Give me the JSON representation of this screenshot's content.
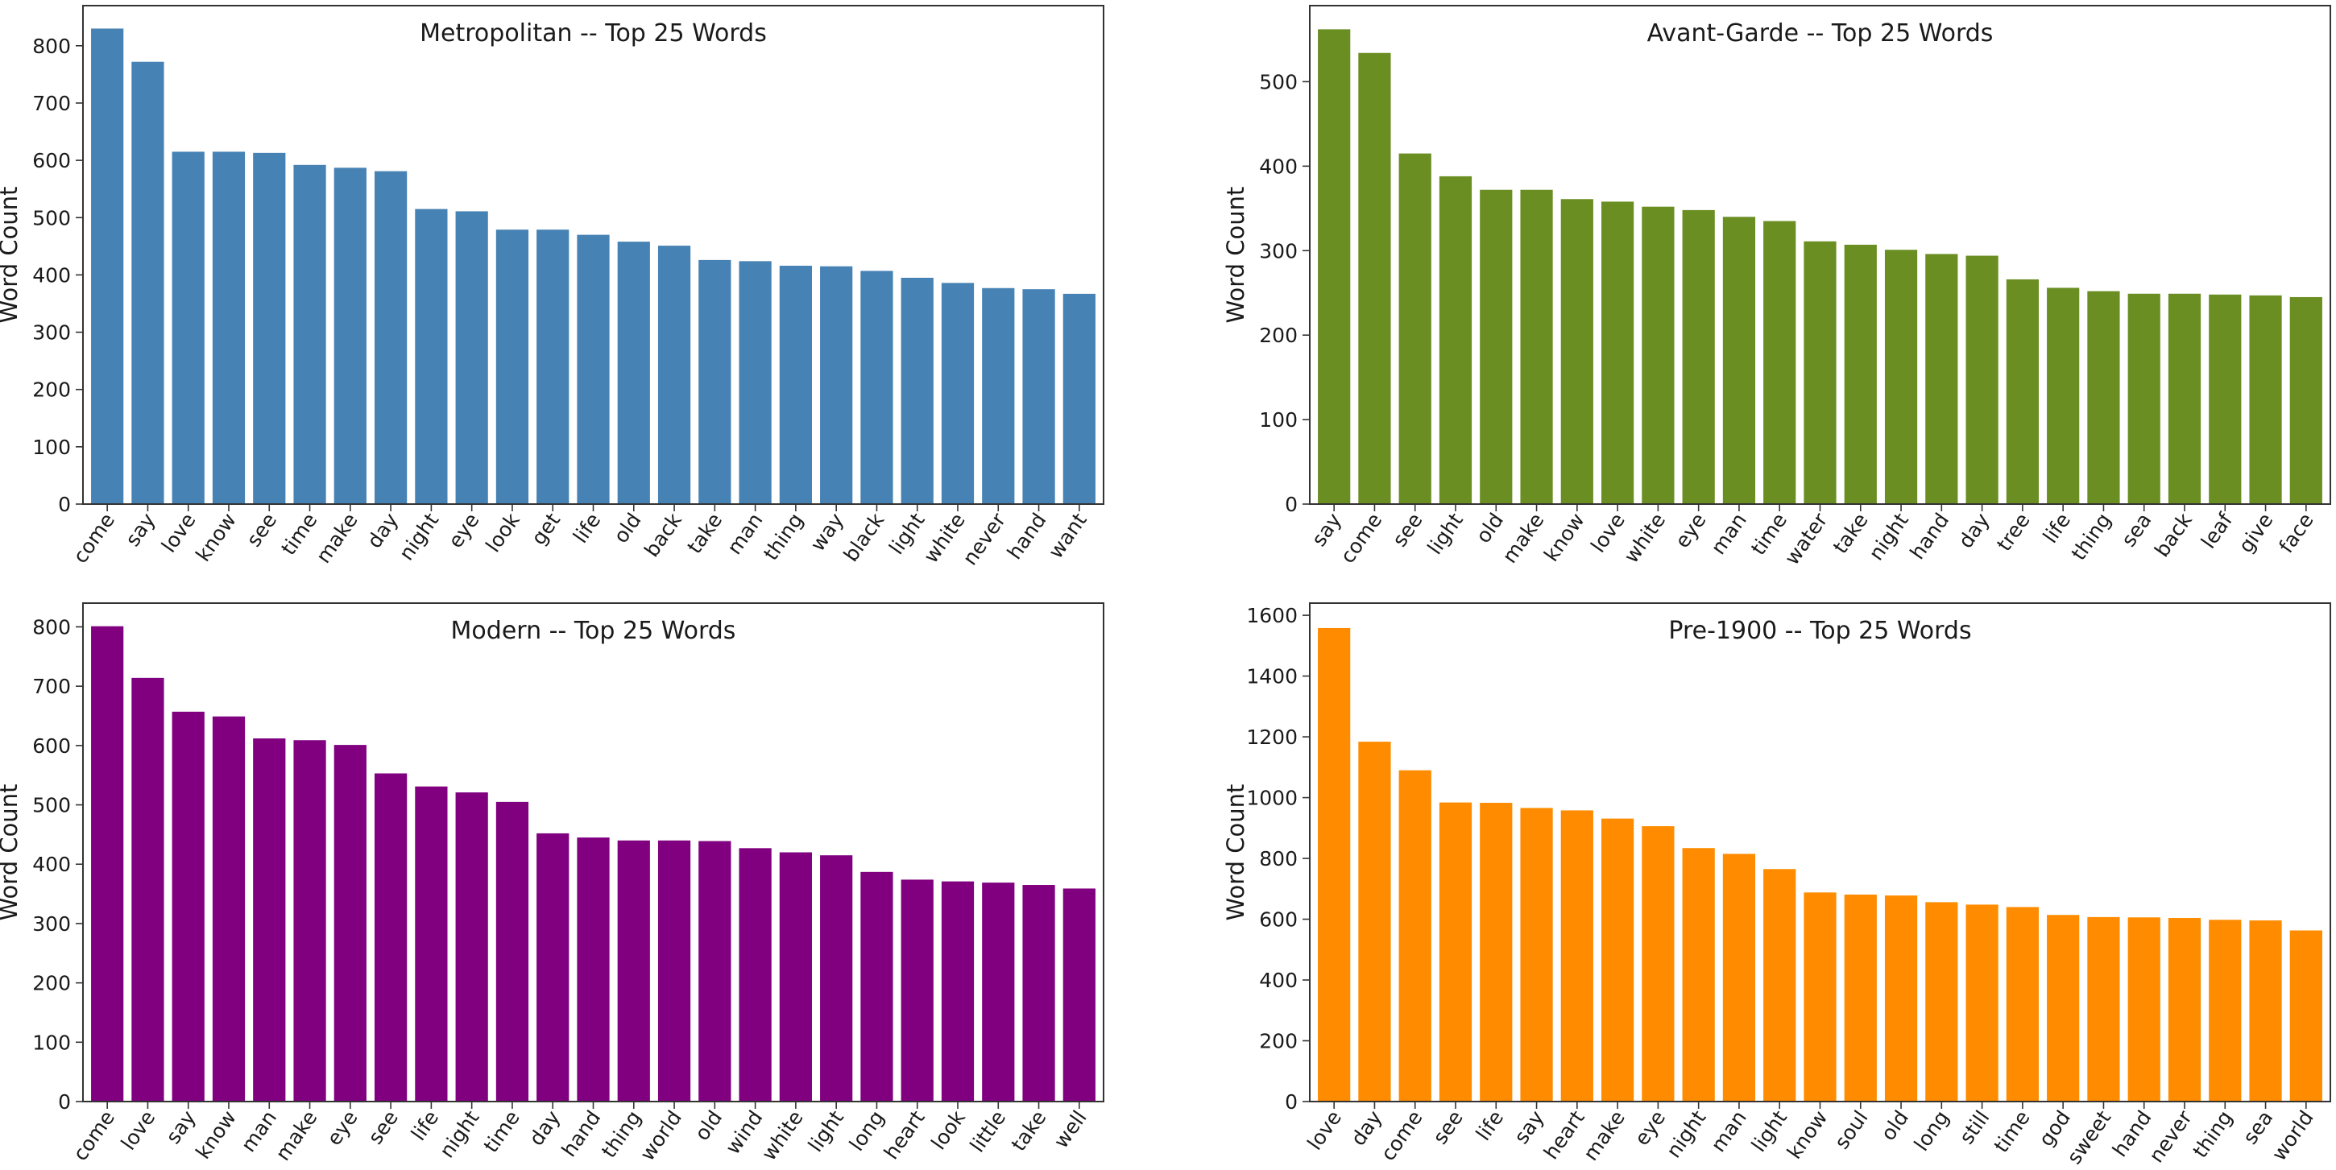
{
  "chart_data": [
    {
      "type": "bar",
      "title": "Metropolitan -- Top 25 Words",
      "xlabel": "",
      "ylabel": "Word Count",
      "color": "#4682b4",
      "ylim": [
        0,
        870
      ],
      "yticks": [
        0,
        100,
        200,
        300,
        400,
        500,
        600,
        700,
        800
      ],
      "grid": false,
      "categories": [
        "come",
        "say",
        "love",
        "know",
        "see",
        "time",
        "make",
        "day",
        "night",
        "eye",
        "look",
        "get",
        "life",
        "old",
        "back",
        "take",
        "man",
        "thing",
        "way",
        "black",
        "light",
        "white",
        "never",
        "hand",
        "want"
      ],
      "values": [
        830,
        772,
        615,
        615,
        613,
        592,
        587,
        581,
        515,
        511,
        479,
        479,
        470,
        458,
        451,
        426,
        424,
        416,
        415,
        407,
        395,
        386,
        377,
        375,
        367
      ]
    },
    {
      "type": "bar",
      "title": "Avant-Garde -- Top 25 Words",
      "xlabel": "",
      "ylabel": "Word Count",
      "color": "#6b8e23",
      "ylim": [
        0,
        590
      ],
      "yticks": [
        0,
        100,
        200,
        300,
        400,
        500
      ],
      "grid": false,
      "categories": [
        "say",
        "come",
        "see",
        "light",
        "old",
        "make",
        "know",
        "love",
        "white",
        "eye",
        "man",
        "time",
        "water",
        "take",
        "night",
        "hand",
        "day",
        "tree",
        "life",
        "thing",
        "sea",
        "back",
        "leaf",
        "give",
        "face"
      ],
      "values": [
        562,
        534,
        415,
        388,
        372,
        372,
        361,
        358,
        352,
        348,
        340,
        335,
        311,
        307,
        301,
        296,
        294,
        266,
        256,
        252,
        249,
        249,
        248,
        247,
        245
      ]
    },
    {
      "type": "bar",
      "title": "Modern -- Top 25 Words",
      "xlabel": "",
      "ylabel": "Word Count",
      "color": "#800080",
      "ylim": [
        0,
        840
      ],
      "yticks": [
        0,
        100,
        200,
        300,
        400,
        500,
        600,
        700,
        800
      ],
      "grid": false,
      "categories": [
        "come",
        "love",
        "say",
        "know",
        "man",
        "make",
        "eye",
        "see",
        "life",
        "night",
        "time",
        "day",
        "hand",
        "thing",
        "world",
        "old",
        "wind",
        "white",
        "light",
        "long",
        "heart",
        "look",
        "little",
        "take",
        "well"
      ],
      "values": [
        801,
        714,
        657,
        649,
        612,
        609,
        601,
        553,
        531,
        521,
        505,
        452,
        445,
        440,
        440,
        439,
        427,
        420,
        415,
        387,
        374,
        371,
        369,
        365,
        359
      ]
    },
    {
      "type": "bar",
      "title": "Pre-1900 -- Top 25 Words",
      "xlabel": "",
      "ylabel": "Word Count",
      "color": "#ff8c00",
      "ylim": [
        0,
        1640
      ],
      "yticks": [
        0,
        200,
        400,
        600,
        800,
        1000,
        1200,
        1400,
        1600
      ],
      "grid": false,
      "categories": [
        "love",
        "day",
        "come",
        "see",
        "life",
        "say",
        "heart",
        "make",
        "eye",
        "night",
        "man",
        "light",
        "know",
        "soul",
        "old",
        "long",
        "still",
        "time",
        "god",
        "sweet",
        "hand",
        "never",
        "thing",
        "sea",
        "world"
      ],
      "values": [
        1558,
        1184,
        1090,
        984,
        983,
        966,
        958,
        931,
        906,
        834,
        815,
        765,
        688,
        681,
        678,
        656,
        648,
        640,
        614,
        607,
        606,
        604,
        598,
        596,
        563
      ]
    }
  ]
}
